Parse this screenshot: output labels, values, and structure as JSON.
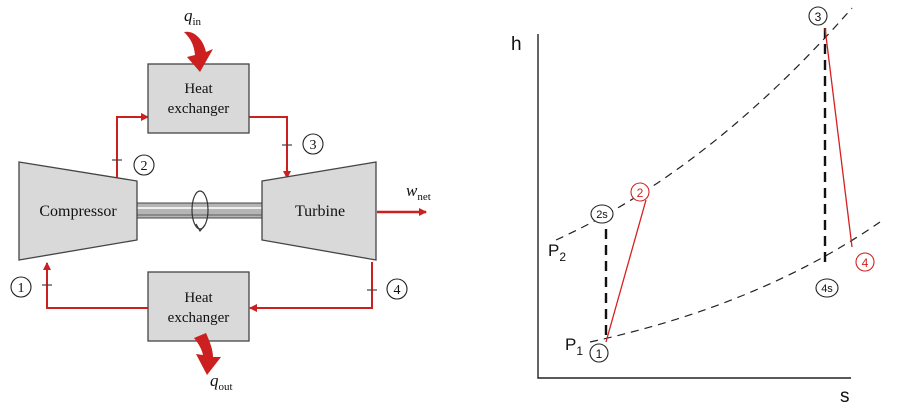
{
  "colors": {
    "box_fill": "#d9d9d9",
    "stroke": "#444444",
    "flow": "#cc1f1f",
    "heat_arrow": "#cc1f1f",
    "text": "#111111",
    "actual_process": "#d62020",
    "ideal_process": "#111111"
  },
  "cycle_diagram": {
    "heat_exchanger_top": {
      "line1": "Heat",
      "line2": "exchanger"
    },
    "heat_exchanger_bottom": {
      "line1": "Heat",
      "line2": "exchanger"
    },
    "compressor": "Compressor",
    "turbine": "Turbine",
    "q_in": {
      "symbol": "q",
      "sub": "in"
    },
    "q_out": {
      "symbol": "q",
      "sub": "out"
    },
    "w_net": {
      "symbol": "w",
      "sub": "net"
    },
    "states": {
      "s1": "1",
      "s2": "2",
      "s3": "3",
      "s4": "4"
    }
  },
  "hs_diagram": {
    "y_axis_label": "h",
    "x_axis_label": "s",
    "isobar_high": {
      "letter": "P",
      "sub": "2"
    },
    "isobar_low": {
      "letter": "P",
      "sub": "1"
    },
    "points": {
      "p1": "1",
      "p2s": "2s",
      "p2": "2",
      "p3": "3",
      "p4": "4",
      "p4s": "4s"
    }
  }
}
